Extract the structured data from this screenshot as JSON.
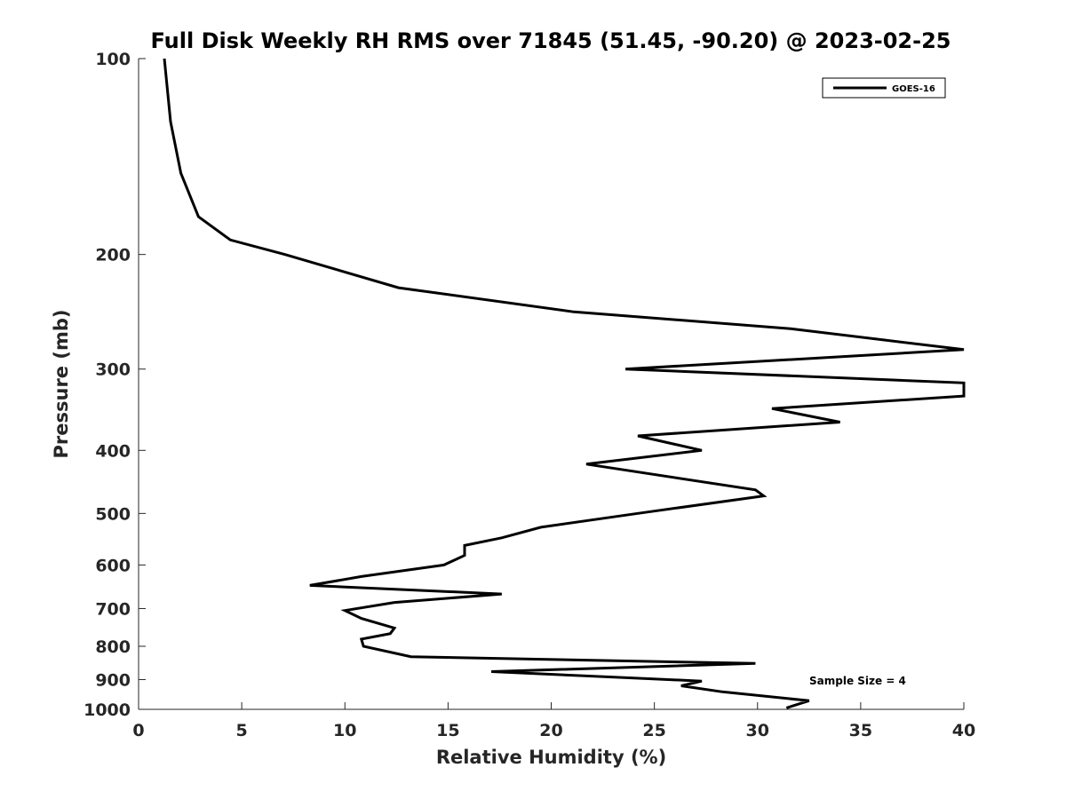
{
  "chart_data": {
    "type": "line",
    "title": "Full Disk Weekly RH RMS over 71845 (51.45, -90.20) @ 2023-02-25",
    "xlabel": "Relative Humidity (%)",
    "ylabel": "Pressure (mb)",
    "xlim": [
      0,
      40
    ],
    "ylim": [
      100,
      1000
    ],
    "yscale": "log",
    "y_reversed": true,
    "xticks": [
      0,
      5,
      10,
      15,
      20,
      25,
      30,
      35,
      40
    ],
    "yticks": [
      100,
      200,
      300,
      400,
      500,
      600,
      700,
      800,
      900,
      1000
    ],
    "grid": false,
    "legend_position": "top-right",
    "annotation": "Sample Size = 4",
    "series": [
      {
        "name": "GOES-16",
        "color": "#000000",
        "points": [
          [
            1.25,
            100
          ],
          [
            1.55,
            125
          ],
          [
            2.05,
            150
          ],
          [
            2.9,
            175
          ],
          [
            4.45,
            190
          ],
          [
            7.1,
            200
          ],
          [
            12.6,
            225
          ],
          [
            21.1,
            245
          ],
          [
            31.6,
            260
          ],
          [
            40.0,
            280
          ],
          [
            23.6,
            300
          ],
          [
            40.0,
            315
          ],
          [
            40.0,
            330
          ],
          [
            30.7,
            345
          ],
          [
            34.0,
            362
          ],
          [
            24.2,
            380
          ],
          [
            27.3,
            400
          ],
          [
            21.7,
            420
          ],
          [
            29.9,
            460
          ],
          [
            30.3,
            470
          ],
          [
            24.2,
            500
          ],
          [
            19.5,
            525
          ],
          [
            17.6,
            545
          ],
          [
            15.8,
            560
          ],
          [
            15.8,
            580
          ],
          [
            14.8,
            600
          ],
          [
            10.8,
            625
          ],
          [
            8.3,
            645
          ],
          [
            17.6,
            665
          ],
          [
            12.4,
            685
          ],
          [
            10.0,
            705
          ],
          [
            10.8,
            725
          ],
          [
            12.4,
            750
          ],
          [
            12.2,
            765
          ],
          [
            10.8,
            780
          ],
          [
            10.9,
            800
          ],
          [
            13.2,
            830
          ],
          [
            29.9,
            850
          ],
          [
            17.1,
            875
          ],
          [
            27.3,
            905
          ],
          [
            26.3,
            920
          ],
          [
            28.3,
            940
          ],
          [
            32.5,
            970
          ],
          [
            31.4,
            995
          ]
        ]
      }
    ]
  }
}
